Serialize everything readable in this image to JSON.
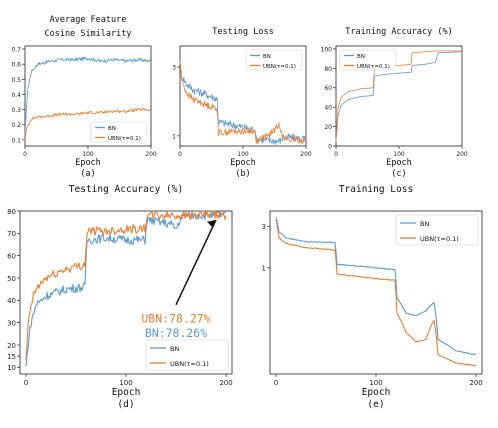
{
  "colors": {
    "bn": "#5b9bd5",
    "ubn": "#ed7d31"
  },
  "chart_data": [
    {
      "id": "a",
      "type": "line",
      "title": "Average Feature\nCosine Similarity",
      "xlabel": "Epoch",
      "caption": "(a)",
      "xlim": [
        0,
        200
      ],
      "ylim": [
        0.06,
        0.72
      ],
      "xticks": [
        0,
        100,
        200
      ],
      "yticks": [
        0.1,
        0.2,
        0.3,
        0.4,
        0.5,
        0.6,
        0.7
      ],
      "legend": "bottom-right",
      "series": [
        {
          "name": "BN",
          "color_key": "bn",
          "noise": 0.012,
          "x": [
            0,
            2,
            5,
            10,
            20,
            40,
            60,
            80,
            100,
            120,
            140,
            160,
            180,
            200
          ],
          "y": [
            0.12,
            0.3,
            0.45,
            0.55,
            0.6,
            0.62,
            0.63,
            0.63,
            0.64,
            0.62,
            0.63,
            0.62,
            0.63,
            0.62
          ]
        },
        {
          "name": "UBN(τ=0.1)",
          "color_key": "ubn",
          "noise": 0.01,
          "x": [
            0,
            2,
            5,
            10,
            20,
            40,
            60,
            80,
            100,
            120,
            140,
            160,
            180,
            200
          ],
          "y": [
            0.1,
            0.16,
            0.2,
            0.24,
            0.25,
            0.26,
            0.27,
            0.27,
            0.28,
            0.28,
            0.29,
            0.29,
            0.3,
            0.3
          ]
        }
      ]
    },
    {
      "id": "b",
      "type": "line",
      "title": "Testing Loss",
      "xlabel": "Epoch",
      "caption": "(b)",
      "xlim": [
        0,
        200
      ],
      "ylim": [
        0.85,
        4.2
      ],
      "yscale": "log",
      "xticks": [
        0,
        100,
        200
      ],
      "yticks": [
        1,
        3
      ],
      "ytick_labels": [
        "1",
        "3"
      ],
      "legend": "top-right",
      "series": [
        {
          "name": "BN",
          "color_key": "bn",
          "noise": 0.07,
          "x": [
            0,
            3,
            10,
            20,
            40,
            59,
            61,
            80,
            100,
            119,
            121,
            140,
            158,
            160,
            165,
            200
          ],
          "y": [
            3.0,
            2.6,
            2.3,
            2.1,
            1.95,
            1.8,
            1.25,
            1.2,
            1.15,
            1.1,
            0.95,
            0.93,
            0.92,
            0.93,
            0.98,
            0.95
          ]
        },
        {
          "name": "UBN(τ=0.1)",
          "color_key": "ubn",
          "noise": 0.06,
          "x": [
            0,
            3,
            10,
            20,
            40,
            59,
            61,
            80,
            100,
            119,
            121,
            140,
            150,
            158,
            165,
            200
          ],
          "y": [
            3.3,
            2.4,
            2.0,
            1.8,
            1.65,
            1.55,
            1.05,
            1.07,
            1.08,
            1.08,
            0.93,
            1.0,
            1.1,
            1.2,
            0.95,
            0.93
          ]
        }
      ]
    },
    {
      "id": "c",
      "type": "line",
      "title": "Training Accuracy (%)",
      "xlabel": "Epoch",
      "caption": "(c)",
      "xlim": [
        0,
        200
      ],
      "ylim": [
        0,
        103
      ],
      "xticks": [
        0,
        100,
        200
      ],
      "yticks": [
        0,
        20,
        40,
        60,
        80,
        100
      ],
      "legend": "top-left",
      "series": [
        {
          "name": "BN",
          "color_key": "bn",
          "noise": 0,
          "x": [
            0,
            3,
            8,
            20,
            40,
            59,
            61,
            80,
            100,
            119,
            121,
            140,
            158,
            162,
            200
          ],
          "y": [
            4,
            30,
            42,
            48,
            51,
            52,
            72,
            74,
            75,
            76,
            83,
            84,
            86,
            96,
            97
          ]
        },
        {
          "name": "UBN(τ=0.1)",
          "color_key": "ubn",
          "noise": 0,
          "x": [
            0,
            3,
            8,
            20,
            40,
            59,
            61,
            80,
            100,
            119,
            121,
            140,
            160,
            200
          ],
          "y": [
            4,
            38,
            50,
            56,
            59,
            60,
            79,
            82,
            83,
            84,
            96,
            97,
            98,
            98
          ]
        }
      ]
    },
    {
      "id": "d",
      "type": "line",
      "title": "Testing Accuracy (%)",
      "xlabel": "Epoch",
      "caption": "(d)",
      "xlim": [
        -6,
        206
      ],
      "ylim": [
        7,
        80
      ],
      "xticks": [
        0,
        100,
        200
      ],
      "yticks": [
        10,
        20,
        30,
        40,
        50,
        60,
        70,
        80
      ],
      "ytick_labels_extra": [
        {
          "v": 15,
          "t": "15"
        }
      ],
      "legend": "bottom-right",
      "series": [
        {
          "name": "BN",
          "color_key": "bn",
          "noise": 2.0,
          "x": [
            0,
            2,
            5,
            10,
            20,
            40,
            59,
            61,
            80,
            100,
            119,
            121,
            135,
            145,
            150,
            155,
            160,
            180,
            200
          ],
          "y": [
            10,
            20,
            30,
            38,
            42,
            45,
            46,
            67,
            68,
            67,
            67,
            76,
            75,
            74,
            72,
            77,
            78,
            78.2,
            78.26
          ]
        },
        {
          "name": "UBN(τ=0.1)",
          "color_key": "ubn",
          "noise": 2.0,
          "x": [
            0,
            2,
            5,
            10,
            20,
            40,
            59,
            61,
            80,
            100,
            119,
            121,
            140,
            160,
            180,
            200
          ],
          "y": [
            12,
            28,
            38,
            45,
            50,
            54,
            56,
            71,
            71,
            72,
            72,
            78,
            78,
            78,
            78.2,
            78.27
          ]
        }
      ],
      "annotations": {
        "ubn": "UBN:78.27%",
        "bn": "BN:78.26%"
      }
    },
    {
      "id": "e",
      "type": "line",
      "title": "Training Loss",
      "xlabel": "Epoch",
      "caption": "(e)",
      "xlim": [
        -6,
        206
      ],
      "ylim": [
        0.06,
        4.5
      ],
      "yscale": "log",
      "xticks": [
        0,
        100,
        200
      ],
      "yticks": [
        1,
        3
      ],
      "ytick_labels": [
        "1",
        "3"
      ],
      "legend": "top-right",
      "series": [
        {
          "name": "BN",
          "color_key": "bn",
          "noise": 0.01,
          "x": [
            0,
            3,
            10,
            30,
            59,
            61,
            80,
            100,
            119,
            121,
            130,
            140,
            150,
            158,
            162,
            180,
            200
          ],
          "y": [
            3.8,
            2.6,
            2.2,
            2.0,
            1.95,
            1.1,
            1.05,
            1.0,
            0.95,
            0.45,
            0.3,
            0.28,
            0.32,
            0.4,
            0.15,
            0.11,
            0.1
          ]
        },
        {
          "name": "UBN(τ=0.1)",
          "color_key": "ubn",
          "noise": 0.01,
          "x": [
            0,
            3,
            10,
            30,
            59,
            61,
            80,
            100,
            119,
            121,
            130,
            140,
            150,
            158,
            162,
            180,
            200
          ],
          "y": [
            3.6,
            2.2,
            1.9,
            1.7,
            1.6,
            0.85,
            0.8,
            0.75,
            0.72,
            0.3,
            0.18,
            0.14,
            0.15,
            0.25,
            0.1,
            0.08,
            0.075
          ]
        }
      ]
    }
  ]
}
